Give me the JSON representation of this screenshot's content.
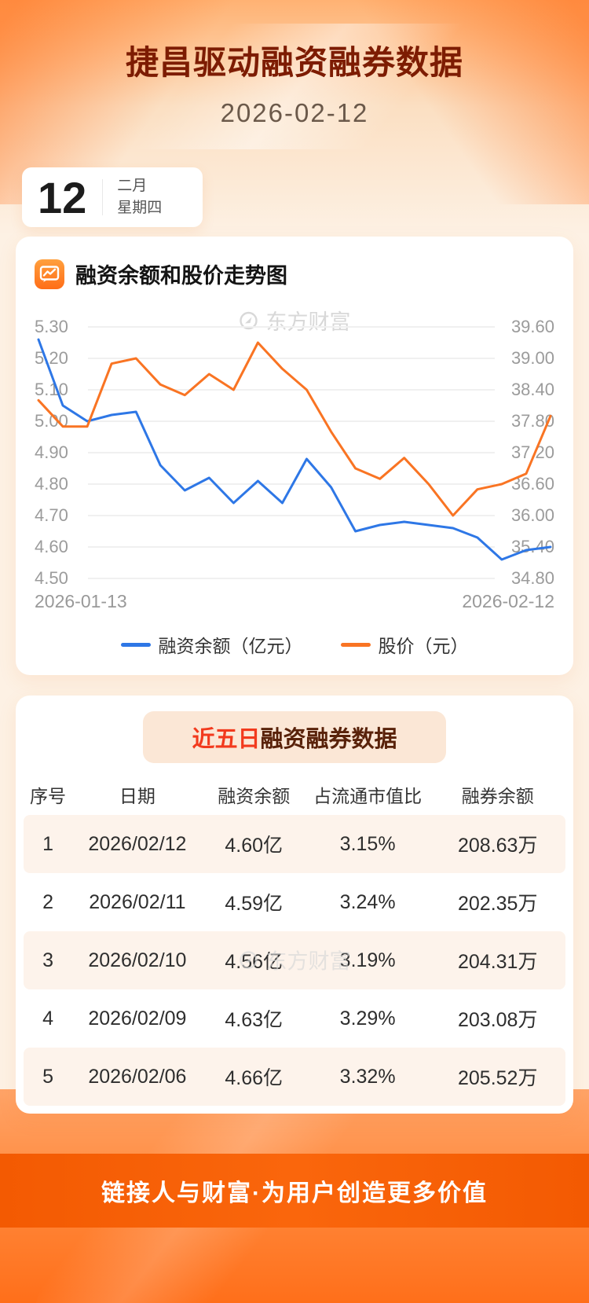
{
  "page": {
    "title": "捷昌驱动融资融券数据",
    "date": "2026-02-12",
    "footer": "链接人与财富·为用户创造更多价值",
    "watermark": "东方财富"
  },
  "date_card": {
    "day": "12",
    "month": "二月",
    "weekday": "星期四"
  },
  "chart_section": {
    "title": "融资余额和股价走势图"
  },
  "chart_data": {
    "type": "line",
    "title": "融资余额和股价走势图",
    "x_start": "2026-01-13",
    "x_end": "2026-02-12",
    "grid": true,
    "legend_position": "bottom",
    "left_axis": {
      "min": 4.5,
      "max": 5.3,
      "ticks": [
        "5.30",
        "5.20",
        "5.10",
        "5.00",
        "4.90",
        "4.80",
        "4.70",
        "4.60",
        "4.50"
      ]
    },
    "right_axis": {
      "min": 34.8,
      "max": 39.6,
      "ticks": [
        "39.60",
        "39.00",
        "38.40",
        "37.80",
        "37.20",
        "36.60",
        "36.00",
        "35.40",
        "34.80"
      ]
    },
    "series": [
      {
        "name": "融资余额（亿元）",
        "axis": "left",
        "color": "#2e77e6",
        "values": [
          5.26,
          5.05,
          5.0,
          5.02,
          5.03,
          4.86,
          4.78,
          4.82,
          4.74,
          4.81,
          4.74,
          4.88,
          4.79,
          4.65,
          4.67,
          4.68,
          4.67,
          4.66,
          4.63,
          4.56,
          4.59,
          4.6
        ]
      },
      {
        "name": "股价（元）",
        "axis": "right",
        "color": "#f97423",
        "values": [
          38.2,
          37.7,
          37.7,
          38.9,
          39.0,
          38.5,
          38.3,
          38.7,
          38.4,
          39.3,
          38.8,
          38.4,
          37.6,
          36.9,
          36.7,
          37.1,
          36.6,
          36.0,
          36.5,
          36.6,
          36.8,
          37.9
        ]
      }
    ]
  },
  "table_section": {
    "title_highlight": "近五日",
    "title_rest": "融资融券数据",
    "headers": [
      "序号",
      "日期",
      "融资余额",
      "占流通市值比",
      "融券余额"
    ],
    "rows": [
      {
        "index": "1",
        "date": "2026/02/12",
        "balance": "4.60亿",
        "ratio": "3.15%",
        "short_balance": "208.63万"
      },
      {
        "index": "2",
        "date": "2026/02/11",
        "balance": "4.59亿",
        "ratio": "3.24%",
        "short_balance": "202.35万"
      },
      {
        "index": "3",
        "date": "2026/02/10",
        "balance": "4.56亿",
        "ratio": "3.19%",
        "short_balance": "204.31万"
      },
      {
        "index": "4",
        "date": "2026/02/09",
        "balance": "4.63亿",
        "ratio": "3.29%",
        "short_balance": "203.08万"
      },
      {
        "index": "5",
        "date": "2026/02/06",
        "balance": "4.66亿",
        "ratio": "3.32%",
        "short_balance": "205.52万"
      }
    ]
  },
  "colors": {
    "accent_orange": "#ff6a14",
    "title_maroon": "#7d1c02",
    "highlight_red": "#f23a1d",
    "balance_line_blue": "#2e77e6",
    "price_line_orange": "#f97423"
  }
}
